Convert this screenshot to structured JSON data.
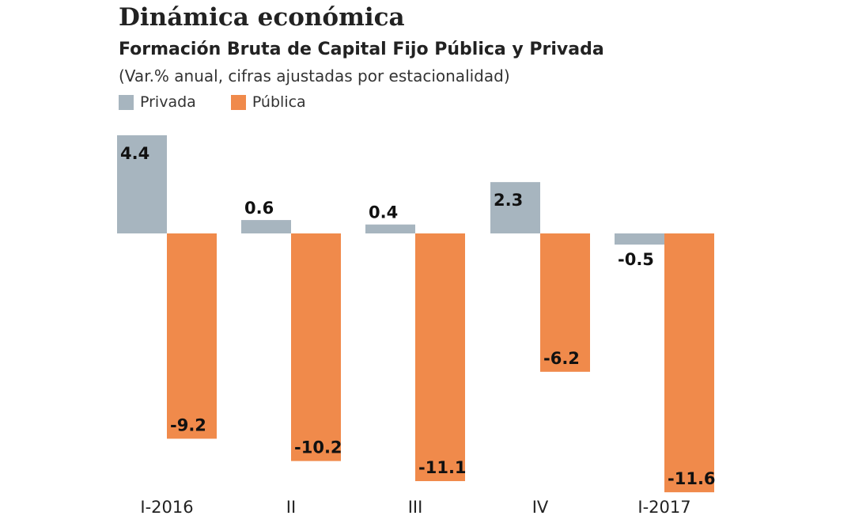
{
  "title": "Dinámica económica",
  "subtitle": "Formación Bruta de Capital Fijo Pública y Privada",
  "note": "(Var.% anual, cifras ajustadas por estacionalidad)",
  "chart_data": {
    "type": "bar",
    "categories": [
      "I-2016",
      "II",
      "III",
      "IV",
      "I-2017"
    ],
    "series": [
      {
        "name": "Privada",
        "color": "#a7b5bf",
        "values": [
          4.4,
          0.6,
          0.4,
          2.3,
          -0.5
        ]
      },
      {
        "name": "Pública",
        "color": "#f08a4b",
        "values": [
          -9.2,
          -10.2,
          -11.1,
          -6.2,
          -11.6
        ]
      }
    ],
    "data_labels": [
      [
        "4.4",
        "0.6",
        "0.4",
        "2.3",
        "-0.5"
      ],
      [
        "-9.2",
        "-10.2",
        "-11.1",
        "-6.2",
        "-11.6"
      ]
    ],
    "legend": "top-left",
    "grid": false
  }
}
